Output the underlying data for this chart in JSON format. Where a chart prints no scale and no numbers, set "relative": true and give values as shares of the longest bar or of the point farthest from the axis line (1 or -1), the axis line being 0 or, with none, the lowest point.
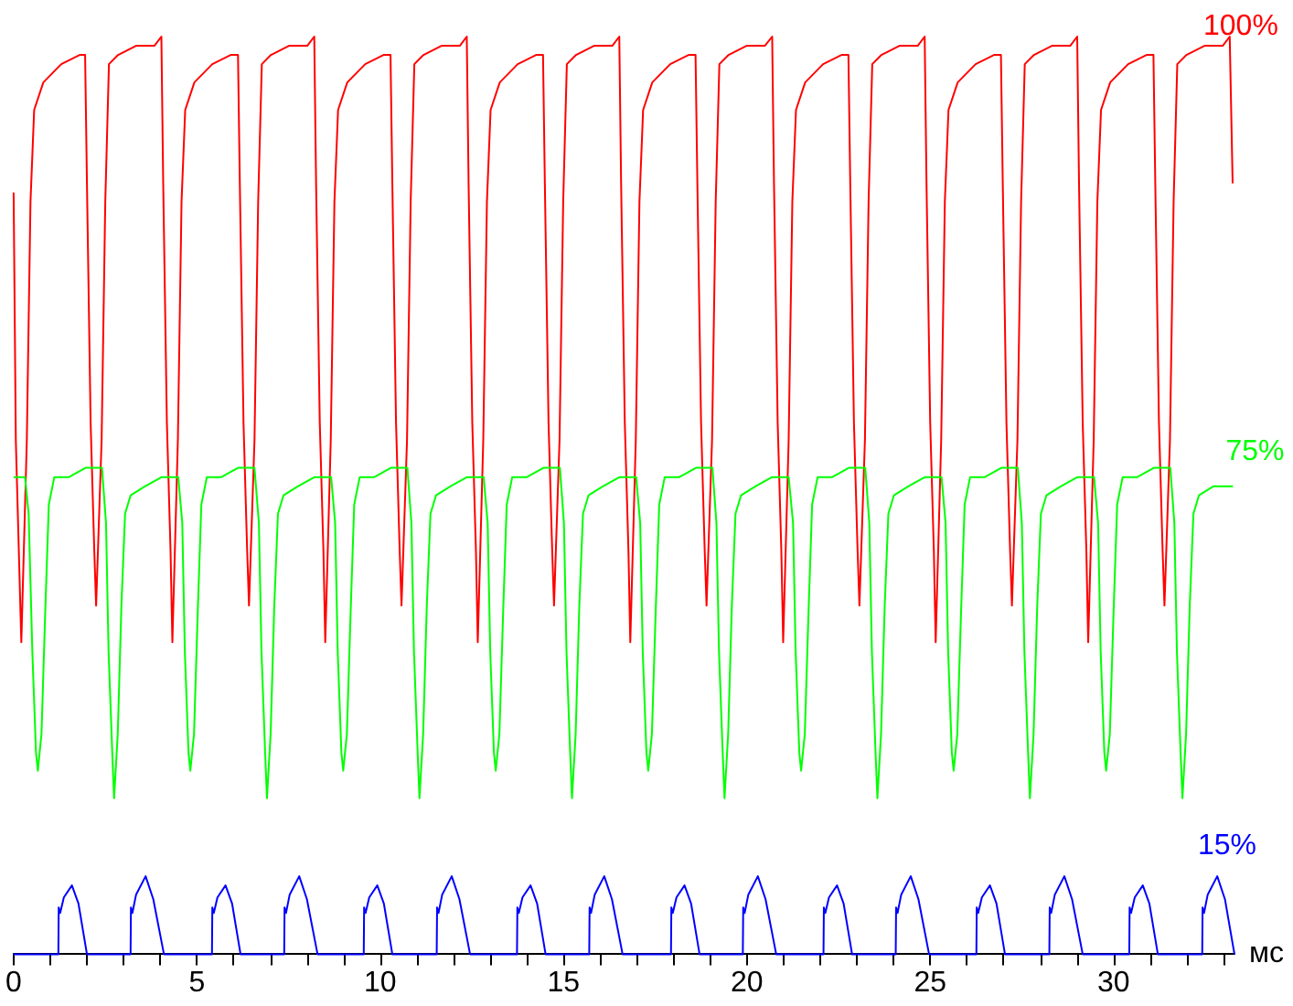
{
  "chart_data": {
    "type": "line",
    "relative": true,
    "xlabel": "мс",
    "xlim": [
      0,
      33.3
    ],
    "xticks": [
      0,
      {
        "value": 1,
        "label": null
      },
      {
        "value": 2,
        "label": null
      },
      {
        "value": 3,
        "label": null
      },
      {
        "value": 4,
        "label": null
      },
      5,
      {
        "value": 6,
        "label": null
      },
      {
        "value": 7,
        "label": null
      },
      {
        "value": 8,
        "label": null
      },
      {
        "value": 9,
        "label": null
      },
      10,
      {
        "value": 11,
        "label": null
      },
      {
        "value": 12,
        "label": null
      },
      {
        "value": 13,
        "label": null
      },
      {
        "value": 14,
        "label": null
      },
      15,
      {
        "value": 16,
        "label": null
      },
      {
        "value": 17,
        "label": null
      },
      {
        "value": 18,
        "label": null
      },
      {
        "value": 19,
        "label": null
      },
      20,
      {
        "value": 21,
        "label": null
      },
      {
        "value": 22,
        "label": null
      },
      {
        "value": 23,
        "label": null
      },
      {
        "value": 24,
        "label": null
      },
      25,
      {
        "value": 26,
        "label": null
      },
      {
        "value": 27,
        "label": null
      },
      {
        "value": 28,
        "label": null
      },
      {
        "value": 29,
        "label": null
      },
      30,
      {
        "value": 31,
        "label": null
      },
      {
        "value": 32,
        "label": null
      },
      {
        "value": 33,
        "label": null
      }
    ],
    "grid": false,
    "legend": false,
    "marker": "none",
    "series": [
      {
        "name": "100%",
        "color": "#ff0000",
        "x": [
          0,
          0.06,
          0.21,
          0.36,
          0.46,
          0.56,
          0.81,
          1.3,
          1.8,
          1.95,
          2.0,
          2.1,
          2.2,
          2.25,
          2.4,
          2.5,
          2.6,
          2.85,
          3.34,
          3.84,
          4.03,
          4.08,
          4.18,
          4.28,
          4.33,
          4.48,
          4.58,
          4.68,
          4.93,
          5.42,
          5.92,
          6.12,
          6.17,
          6.27,
          6.37,
          6.42,
          6.57,
          6.67,
          6.77,
          7.02,
          7.51,
          8.01,
          8.2,
          8.25,
          8.35,
          8.45,
          8.5,
          8.65,
          8.75,
          8.85,
          9.1,
          9.59,
          10.09,
          10.28,
          10.33,
          10.43,
          10.53,
          10.58,
          10.73,
          10.83,
          10.93,
          11.18,
          11.67,
          12.17,
          12.36,
          12.41,
          12.51,
          12.61,
          12.66,
          12.81,
          12.91,
          13.01,
          13.26,
          13.75,
          14.25,
          14.44,
          14.49,
          14.59,
          14.69,
          14.74,
          14.89,
          14.99,
          15.09,
          15.34,
          15.83,
          16.33,
          16.52,
          16.57,
          16.67,
          16.77,
          16.82,
          16.97,
          17.07,
          17.17,
          17.42,
          17.91,
          18.41,
          18.6,
          18.65,
          18.75,
          18.85,
          18.9,
          19.05,
          19.15,
          19.25,
          19.5,
          19.99,
          20.49,
          20.69,
          20.74,
          20.84,
          20.94,
          20.99,
          21.14,
          21.24,
          21.34,
          21.59,
          22.08,
          22.58,
          22.77,
          22.82,
          22.92,
          23.02,
          23.07,
          23.22,
          23.32,
          23.42,
          23.67,
          24.16,
          24.66,
          24.85,
          24.9,
          25.0,
          25.1,
          25.15,
          25.3,
          25.4,
          25.5,
          25.75,
          26.24,
          26.74,
          26.93,
          26.98,
          27.08,
          27.18,
          27.23,
          27.38,
          27.48,
          27.58,
          27.83,
          28.32,
          28.82,
          29.01,
          29.06,
          29.16,
          29.26,
          29.31,
          29.46,
          29.56,
          29.66,
          29.91,
          30.4,
          30.9,
          31.09,
          31.14,
          31.24,
          31.34,
          31.39,
          31.54,
          31.64,
          31.74,
          31.99,
          32.48,
          32.98,
          33.17,
          33.25
        ],
        "values": [
          0.83,
          0.56,
          0.34,
          0.56,
          0.82,
          0.92,
          0.95,
          0.97,
          0.98,
          0.98,
          0.84,
          0.58,
          0.44,
          0.38,
          0.56,
          0.82,
          0.97,
          0.98,
          0.99,
          0.99,
          1,
          0.84,
          0.58,
          0.44,
          0.34,
          0.56,
          0.82,
          0.92,
          0.95,
          0.97,
          0.98,
          0.98,
          0.84,
          0.58,
          0.44,
          0.38,
          0.56,
          0.82,
          0.97,
          0.98,
          0.99,
          0.99,
          1,
          0.84,
          0.58,
          0.44,
          0.34,
          0.56,
          0.82,
          0.92,
          0.95,
          0.97,
          0.98,
          0.98,
          0.84,
          0.58,
          0.44,
          0.38,
          0.56,
          0.82,
          0.97,
          0.98,
          0.99,
          0.99,
          1,
          0.84,
          0.58,
          0.44,
          0.34,
          0.56,
          0.82,
          0.92,
          0.95,
          0.97,
          0.98,
          0.98,
          0.84,
          0.58,
          0.44,
          0.38,
          0.56,
          0.82,
          0.97,
          0.98,
          0.99,
          0.99,
          1,
          0.84,
          0.58,
          0.44,
          0.34,
          0.56,
          0.82,
          0.92,
          0.95,
          0.97,
          0.98,
          0.98,
          0.84,
          0.58,
          0.44,
          0.38,
          0.56,
          0.82,
          0.97,
          0.98,
          0.99,
          0.99,
          1,
          0.84,
          0.58,
          0.44,
          0.34,
          0.56,
          0.82,
          0.92,
          0.95,
          0.97,
          0.98,
          0.98,
          0.84,
          0.58,
          0.44,
          0.38,
          0.56,
          0.82,
          0.97,
          0.98,
          0.99,
          0.99,
          1,
          0.84,
          0.58,
          0.44,
          0.34,
          0.56,
          0.82,
          0.92,
          0.95,
          0.97,
          0.98,
          0.98,
          0.84,
          0.58,
          0.44,
          0.38,
          0.56,
          0.82,
          0.97,
          0.98,
          0.99,
          0.99,
          1,
          0.84,
          0.58,
          0.44,
          0.34,
          0.56,
          0.82,
          0.92,
          0.95,
          0.97,
          0.98,
          0.98,
          0.84,
          0.58,
          0.44,
          0.38,
          0.56,
          0.82,
          0.97,
          0.98,
          0.99,
          0.99,
          1,
          0.84
        ]
      },
      {
        "name": "75%",
        "color": "#00ff00",
        "x": [
          0,
          0.31,
          0.41,
          0.51,
          0.61,
          0.66,
          0.76,
          0.86,
          0.96,
          1.11,
          1.51,
          1.96,
          2.41,
          2.52,
          2.59,
          2.69,
          2.74,
          2.84,
          2.94,
          3.04,
          3.19,
          3.59,
          4.04,
          4.49,
          4.6,
          4.67,
          4.77,
          4.82,
          4.92,
          5.02,
          5.12,
          5.27,
          5.67,
          6.12,
          6.57,
          6.69,
          6.76,
          6.86,
          6.91,
          7.01,
          7.11,
          7.21,
          7.36,
          7.76,
          8.21,
          8.66,
          8.77,
          8.84,
          8.94,
          8.99,
          9.09,
          9.19,
          9.29,
          9.44,
          9.84,
          10.29,
          10.74,
          10.85,
          10.92,
          11.02,
          11.07,
          11.17,
          11.27,
          11.37,
          11.52,
          11.92,
          12.37,
          12.82,
          12.93,
          13.0,
          13.1,
          13.15,
          13.25,
          13.35,
          13.45,
          13.6,
          14.0,
          14.45,
          14.9,
          15.01,
          15.08,
          15.18,
          15.23,
          15.33,
          15.43,
          15.53,
          15.68,
          16.08,
          16.53,
          16.98,
          17.09,
          17.16,
          17.26,
          17.31,
          17.41,
          17.51,
          17.61,
          17.76,
          18.16,
          18.61,
          19.06,
          19.17,
          19.24,
          19.34,
          19.39,
          19.49,
          19.59,
          19.69,
          19.84,
          20.24,
          20.69,
          21.14,
          21.26,
          21.33,
          21.43,
          21.48,
          21.58,
          21.68,
          21.78,
          21.93,
          22.33,
          22.78,
          23.23,
          23.34,
          23.41,
          23.51,
          23.56,
          23.66,
          23.76,
          23.86,
          24.01,
          24.41,
          24.86,
          25.31,
          25.42,
          25.49,
          25.59,
          25.64,
          25.74,
          25.84,
          25.94,
          26.09,
          26.49,
          26.94,
          27.39,
          27.5,
          27.57,
          27.67,
          27.72,
          27.82,
          27.92,
          28.02,
          28.17,
          28.57,
          29.02,
          29.47,
          29.58,
          29.65,
          29.75,
          29.8,
          29.9,
          30.0,
          30.1,
          30.25,
          30.65,
          31.1,
          31.55,
          31.66,
          31.73,
          31.83,
          31.88,
          31.98,
          32.08,
          32.18,
          32.33,
          32.73,
          33.26
        ],
        "values": [
          0.52,
          0.52,
          0.48,
          0.33,
          0.22,
          0.2,
          0.24,
          0.37,
          0.49,
          0.52,
          0.52,
          0.53,
          0.53,
          0.47,
          0.33,
          0.22,
          0.17,
          0.24,
          0.38,
          0.48,
          0.5,
          0.51,
          0.52,
          0.52,
          0.47,
          0.33,
          0.22,
          0.2,
          0.24,
          0.37,
          0.49,
          0.52,
          0.52,
          0.53,
          0.53,
          0.47,
          0.33,
          0.22,
          0.17,
          0.24,
          0.38,
          0.48,
          0.5,
          0.51,
          0.52,
          0.52,
          0.47,
          0.33,
          0.22,
          0.2,
          0.24,
          0.37,
          0.49,
          0.52,
          0.52,
          0.53,
          0.53,
          0.47,
          0.33,
          0.22,
          0.17,
          0.24,
          0.38,
          0.48,
          0.5,
          0.51,
          0.52,
          0.52,
          0.47,
          0.33,
          0.22,
          0.2,
          0.24,
          0.37,
          0.49,
          0.52,
          0.52,
          0.53,
          0.53,
          0.47,
          0.33,
          0.22,
          0.17,
          0.24,
          0.38,
          0.48,
          0.5,
          0.51,
          0.52,
          0.52,
          0.47,
          0.33,
          0.22,
          0.2,
          0.24,
          0.37,
          0.49,
          0.52,
          0.52,
          0.53,
          0.53,
          0.47,
          0.33,
          0.22,
          0.17,
          0.24,
          0.38,
          0.48,
          0.5,
          0.51,
          0.52,
          0.52,
          0.47,
          0.33,
          0.22,
          0.2,
          0.24,
          0.37,
          0.49,
          0.52,
          0.52,
          0.53,
          0.53,
          0.47,
          0.33,
          0.22,
          0.17,
          0.24,
          0.38,
          0.48,
          0.5,
          0.51,
          0.52,
          0.52,
          0.47,
          0.33,
          0.22,
          0.2,
          0.24,
          0.37,
          0.49,
          0.52,
          0.52,
          0.53,
          0.53,
          0.47,
          0.33,
          0.22,
          0.17,
          0.24,
          0.38,
          0.48,
          0.5,
          0.51,
          0.52,
          0.52,
          0.47,
          0.33,
          0.22,
          0.2,
          0.24,
          0.37,
          0.49,
          0.52,
          0.52,
          0.53,
          0.53,
          0.47,
          0.33,
          0.22,
          0.17,
          0.24,
          0.38,
          0.48,
          0.5,
          0.51,
          0.51
        ]
      },
      {
        "name": "15%",
        "color": "#0000ff",
        "x": [
          0,
          1.22,
          1.23,
          1.27,
          1.37,
          1.59,
          1.77,
          2.0,
          3.19,
          3.2,
          3.24,
          3.34,
          3.6,
          3.81,
          4.1,
          5.41,
          5.42,
          5.46,
          5.56,
          5.78,
          5.96,
          6.19,
          7.38,
          7.39,
          7.43,
          7.53,
          7.79,
          8.0,
          8.29,
          9.55,
          9.56,
          9.6,
          9.7,
          9.92,
          10.1,
          10.33,
          11.54,
          11.55,
          11.59,
          11.69,
          11.95,
          12.16,
          12.45,
          13.73,
          13.74,
          13.78,
          13.88,
          14.1,
          14.28,
          14.51,
          15.7,
          15.71,
          15.75,
          15.85,
          16.11,
          16.32,
          16.61,
          17.93,
          17.94,
          17.98,
          18.08,
          18.3,
          18.48,
          18.71,
          19.89,
          19.9,
          19.94,
          20.04,
          20.3,
          20.51,
          20.8,
          22.09,
          22.1,
          22.14,
          22.24,
          22.46,
          22.64,
          22.87,
          24.06,
          24.07,
          24.11,
          24.21,
          24.47,
          24.68,
          24.97,
          26.26,
          26.27,
          26.31,
          26.41,
          26.63,
          26.81,
          27.04,
          28.25,
          28.26,
          28.3,
          28.4,
          28.66,
          28.87,
          29.16,
          30.43,
          30.44,
          30.48,
          30.58,
          30.8,
          30.98,
          31.21,
          32.42,
          32.43,
          32.47,
          32.57,
          32.83,
          33.04,
          33.3
        ],
        "values": [
          0,
          0,
          0.051,
          0.045,
          0.062,
          0.075,
          0.055,
          0,
          0,
          0.051,
          0.045,
          0.065,
          0.085,
          0.06,
          0,
          0,
          0.051,
          0.045,
          0.062,
          0.075,
          0.055,
          0,
          0,
          0.051,
          0.045,
          0.065,
          0.085,
          0.06,
          0,
          0,
          0.051,
          0.045,
          0.062,
          0.075,
          0.055,
          0,
          0,
          0.051,
          0.045,
          0.065,
          0.085,
          0.06,
          0,
          0,
          0.051,
          0.045,
          0.062,
          0.075,
          0.055,
          0,
          0,
          0.051,
          0.045,
          0.065,
          0.085,
          0.06,
          0,
          0,
          0.051,
          0.045,
          0.062,
          0.075,
          0.055,
          0,
          0,
          0.051,
          0.045,
          0.065,
          0.085,
          0.06,
          0,
          0,
          0.051,
          0.045,
          0.062,
          0.075,
          0.055,
          0,
          0,
          0.051,
          0.045,
          0.065,
          0.085,
          0.06,
          0,
          0,
          0.051,
          0.045,
          0.062,
          0.075,
          0.055,
          0,
          0,
          0.051,
          0.045,
          0.065,
          0.085,
          0.06,
          0,
          0,
          0.051,
          0.045,
          0.062,
          0.075,
          0.055,
          0,
          0,
          0.051,
          0.045,
          0.065,
          0.085,
          0.06,
          0
        ]
      }
    ]
  }
}
